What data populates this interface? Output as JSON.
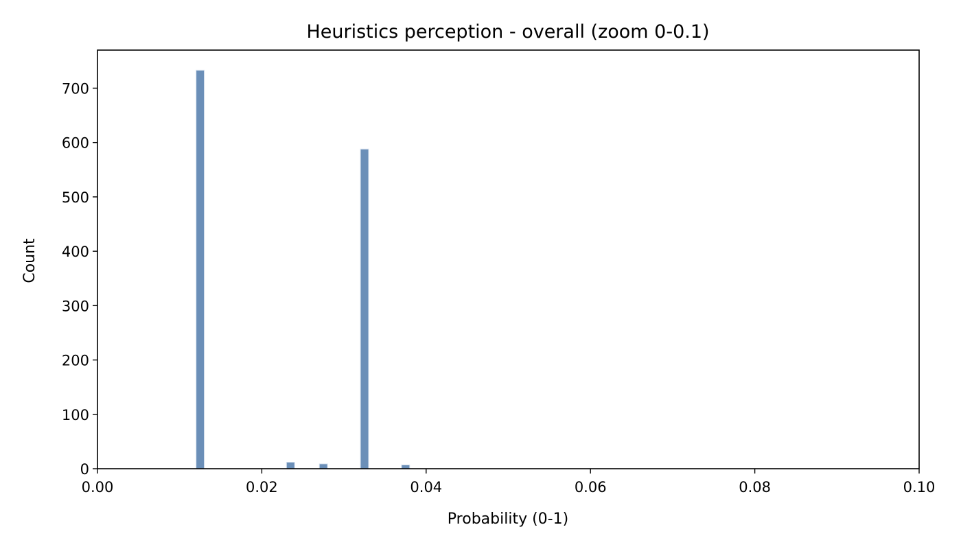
{
  "chart_data": {
    "type": "bar",
    "title": "Heuristics perception - overall (zoom 0-0.1)",
    "xlabel": "Probability (0-1)",
    "ylabel": "Count",
    "xlim": [
      0,
      0.1
    ],
    "ylim": [
      0,
      770
    ],
    "xticks": [
      0.0,
      0.02,
      0.04,
      0.06,
      0.08,
      0.1
    ],
    "xtick_labels": [
      "0.00",
      "0.02",
      "0.04",
      "0.06",
      "0.08",
      "0.10"
    ],
    "yticks": [
      0,
      100,
      200,
      300,
      400,
      500,
      600,
      700
    ],
    "ytick_labels": [
      "0",
      "100",
      "200",
      "300",
      "400",
      "500",
      "600",
      "700"
    ],
    "grid": false,
    "bar_color": "#6b8fb8",
    "bar_edge_color": "#dbe5f0",
    "bin_width": 0.001,
    "bins": [
      {
        "x0": 0.012,
        "x1": 0.013,
        "count": 733
      },
      {
        "x0": 0.023,
        "x1": 0.024,
        "count": 12
      },
      {
        "x0": 0.027,
        "x1": 0.028,
        "count": 9
      },
      {
        "x0": 0.032,
        "x1": 0.033,
        "count": 588
      },
      {
        "x0": 0.037,
        "x1": 0.038,
        "count": 7
      }
    ]
  }
}
